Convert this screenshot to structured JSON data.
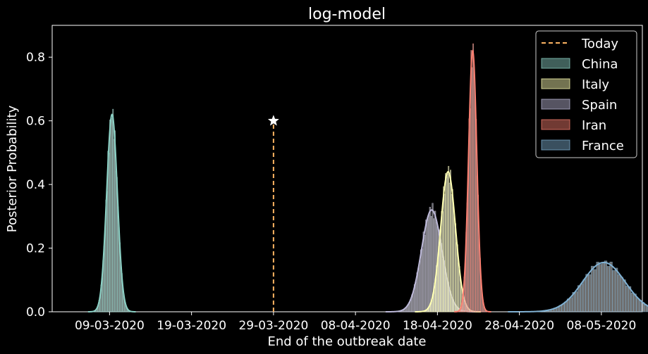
{
  "chart_data": {
    "type": "area",
    "title": "log-model",
    "xlabel": "End of the outbreak date",
    "ylabel": "Posterior Probability",
    "xlim": [
      "2020-03-02",
      "2020-05-13"
    ],
    "ylim": [
      0,
      0.9
    ],
    "x_ticks": [
      "09-03-2020",
      "19-03-2020",
      "29-03-2020",
      "08-04-2020",
      "18-04-2020",
      "28-04-2020",
      "08-05-2020"
    ],
    "y_ticks": [
      0.0,
      0.2,
      0.4,
      0.6,
      0.8
    ],
    "y_tick_labels": [
      "0.0",
      "0.2",
      "0.4",
      "0.6",
      "0.8"
    ],
    "grid": false,
    "legend_position": "top-right",
    "today": {
      "label": "Today",
      "date": "2020-03-29",
      "marker_y": 0.6,
      "color": "#fdb462"
    },
    "series": [
      {
        "name": "China",
        "color": "#8dd3c7",
        "peak_date": "2020-03-09",
        "peak_density": 0.62,
        "spread_days": 0.65
      },
      {
        "name": "Italy",
        "color": "#ffffb3",
        "peak_date": "2020-04-19",
        "peak_density": 0.44,
        "spread_days": 0.9
      },
      {
        "name": "Spain",
        "color": "#bebada",
        "peak_date": "2020-04-17",
        "peak_density": 0.32,
        "spread_days": 1.25
      },
      {
        "name": "Iran",
        "color": "#fb8072",
        "peak_date": "2020-04-22",
        "peak_density": 0.82,
        "spread_days": 0.5
      },
      {
        "name": "France",
        "color": "#80b1d3",
        "peak_date": "2020-05-08",
        "peak_density": 0.155,
        "spread_days": 2.6
      }
    ]
  }
}
